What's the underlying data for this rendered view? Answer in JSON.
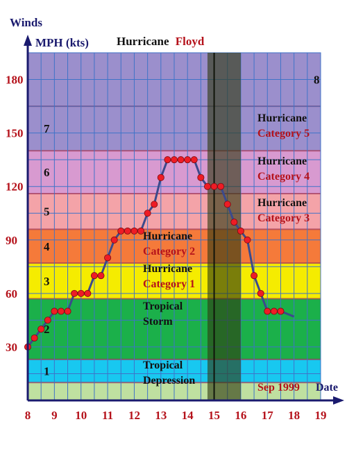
{
  "chart_data": {
    "type": "line",
    "title_prefix": "Hurricane",
    "title_name": "Floyd",
    "y_axis_title": "Winds",
    "y_axis_unit": "MPH (kts)",
    "x_axis_title": "Date",
    "x_axis_period": "Sep 1999",
    "xlim": [
      8,
      19
    ],
    "ylim": [
      0,
      195
    ],
    "x_ticks": [
      8,
      9,
      10,
      11,
      12,
      13,
      14,
      15,
      16,
      17,
      18,
      19
    ],
    "y_ticks": [
      30,
      60,
      90,
      120,
      150,
      180
    ],
    "grid": true,
    "bands": [
      {
        "level": "1",
        "y0": 0,
        "y1": 10,
        "color": "#bfe0a0",
        "label": ""
      },
      {
        "level": "1",
        "y0": 10,
        "y1": 23,
        "color": "#18c8f0",
        "label": [
          "Tropical",
          "Depression"
        ]
      },
      {
        "level": "2",
        "y0": 23,
        "y1": 57,
        "color": "#1bb04a",
        "label": [
          "Tropical",
          "Storm"
        ]
      },
      {
        "level": "3",
        "y0": 57,
        "y1": 77,
        "color": "#f5ec00",
        "label": [
          "Hurricane",
          "Category 1"
        ]
      },
      {
        "level": "4",
        "y0": 77,
        "y1": 96,
        "color": "#f57a3a",
        "label": [
          "Hurricane",
          "Category 2"
        ]
      },
      {
        "level": "5",
        "y0": 96,
        "y1": 116,
        "color": "#f4a3a8",
        "label": [
          "Hurricane",
          "Category 3"
        ]
      },
      {
        "level": "6",
        "y0": 116,
        "y1": 140,
        "color": "#d89ad0",
        "label": [
          "Hurricane",
          "Category 4"
        ]
      },
      {
        "level": "7",
        "y0": 140,
        "y1": 165,
        "color": "#9b8fcc",
        "label": [
          "Hurricane",
          "Category 5"
        ]
      },
      {
        "level": "8",
        "y0": 165,
        "y1": 195,
        "color": "#9b8fcc",
        "label": ""
      }
    ],
    "highlight_span": {
      "x0": 14.75,
      "x1": 16.0
    },
    "highlight_divider_x": 15.0,
    "series": [
      {
        "x": [
          8.0,
          8.25,
          8.5,
          8.75,
          9.0,
          9.25,
          9.5,
          9.75,
          10.0,
          10.25,
          10.5,
          10.75,
          11.0,
          11.25,
          11.5,
          11.75,
          12.0,
          12.25,
          12.5,
          12.75,
          13.0,
          13.25,
          13.5,
          13.75,
          14.0,
          14.25,
          14.5,
          14.75,
          15.0,
          15.25,
          15.5,
          15.75,
          16.0,
          16.25,
          16.5,
          16.75,
          17.0,
          17.25,
          17.5
        ],
        "y": [
          30,
          35,
          40,
          45,
          50,
          50,
          50,
          60,
          60,
          60,
          70,
          70,
          80,
          90,
          95,
          95,
          95,
          95,
          105,
          110,
          125,
          135,
          135,
          135,
          135,
          135,
          125,
          120,
          120,
          120,
          110,
          100,
          95,
          90,
          70,
          60,
          50,
          50,
          50
        ],
        "tail_x": 18.0,
        "tail_y": 47
      }
    ]
  }
}
